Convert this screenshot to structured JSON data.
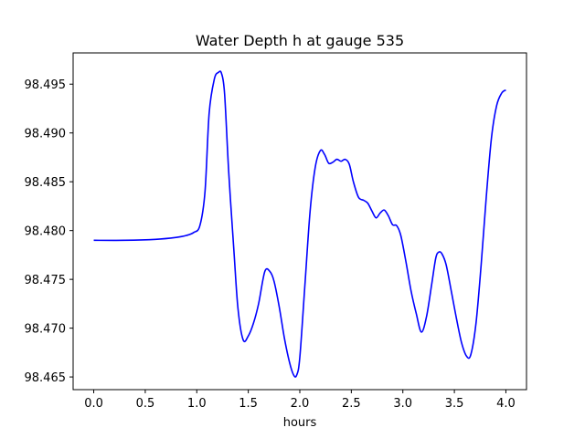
{
  "chart_data": {
    "type": "line",
    "title": "Water Depth h at gauge 535",
    "xlabel": "hours",
    "ylabel": "",
    "xlim": [
      -0.2,
      4.2
    ],
    "ylim": [
      98.4637,
      98.4982
    ],
    "x_ticks": [
      {
        "value": 0.0,
        "label": "0.0"
      },
      {
        "value": 0.5,
        "label": "0.5"
      },
      {
        "value": 1.0,
        "label": "1.0"
      },
      {
        "value": 1.5,
        "label": "1.5"
      },
      {
        "value": 2.0,
        "label": "2.0"
      },
      {
        "value": 2.5,
        "label": "2.5"
      },
      {
        "value": 3.0,
        "label": "3.0"
      },
      {
        "value": 3.5,
        "label": "3.5"
      },
      {
        "value": 4.0,
        "label": "4.0"
      }
    ],
    "y_ticks": [
      {
        "value": 98.465,
        "label": "98.465"
      },
      {
        "value": 98.47,
        "label": "98.470"
      },
      {
        "value": 98.475,
        "label": "98.475"
      },
      {
        "value": 98.48,
        "label": "98.480"
      },
      {
        "value": 98.485,
        "label": "98.485"
      },
      {
        "value": 98.49,
        "label": "98.490"
      },
      {
        "value": 98.495,
        "label": "98.495"
      }
    ],
    "grid": false,
    "line_color": "#0000ff",
    "series": [
      {
        "x": [
          0.0,
          0.3,
          0.6,
          0.8,
          0.9,
          0.97,
          1.03,
          1.08,
          1.12,
          1.17,
          1.21,
          1.24,
          1.27,
          1.31,
          1.36,
          1.4,
          1.45,
          1.5,
          1.55,
          1.6,
          1.66,
          1.71,
          1.75,
          1.8,
          1.85,
          1.9,
          1.94,
          1.97,
          2.0,
          2.05,
          2.1,
          2.15,
          2.2,
          2.24,
          2.28,
          2.32,
          2.36,
          2.4,
          2.44,
          2.48,
          2.52,
          2.57,
          2.62,
          2.66,
          2.7,
          2.74,
          2.78,
          2.82,
          2.86,
          2.9,
          2.94,
          2.98,
          3.03,
          3.08,
          3.13,
          3.18,
          3.23,
          3.28,
          3.32,
          3.35,
          3.38,
          3.42,
          3.47,
          3.52,
          3.57,
          3.62,
          3.66,
          3.71,
          3.76,
          3.81,
          3.86,
          3.91,
          3.96,
          4.0
        ],
        "y": [
          98.479,
          98.479,
          98.4791,
          98.4793,
          98.4795,
          98.4798,
          98.4805,
          98.484,
          98.492,
          98.4955,
          98.4962,
          98.4961,
          98.494,
          98.486,
          98.478,
          98.472,
          98.4688,
          98.4692,
          98.4705,
          98.4725,
          98.4758,
          98.4758,
          98.4748,
          98.4722,
          98.469,
          98.4665,
          98.4652,
          98.4652,
          98.467,
          98.4745,
          98.482,
          98.4865,
          98.4882,
          98.4878,
          98.4869,
          98.487,
          98.4873,
          98.4871,
          98.4873,
          98.4868,
          98.485,
          98.4834,
          98.4831,
          98.4828,
          98.482,
          98.4813,
          98.4818,
          98.4821,
          98.4815,
          98.4806,
          98.4805,
          98.4795,
          98.4768,
          98.4738,
          98.4715,
          98.4696,
          98.4712,
          98.4745,
          98.4772,
          98.4778,
          98.4776,
          98.4765,
          98.4738,
          98.471,
          98.4685,
          98.4671,
          98.4673,
          98.4705,
          98.4765,
          98.4835,
          98.4895,
          98.4928,
          98.4941,
          98.4944
        ]
      }
    ]
  }
}
